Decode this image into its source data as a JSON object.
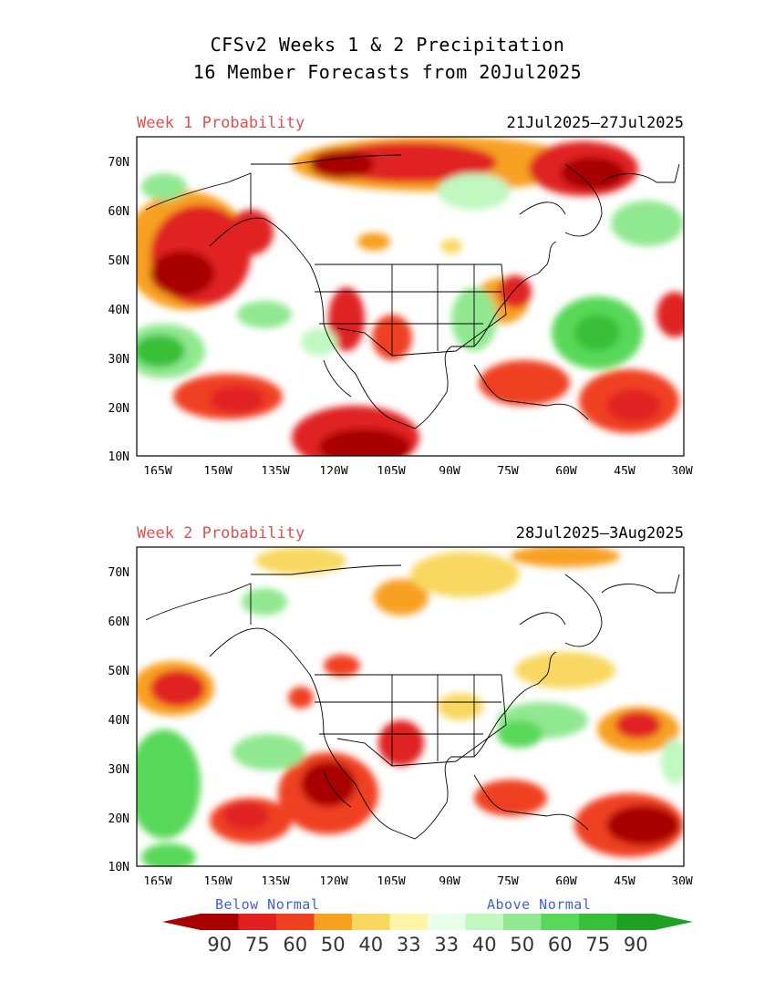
{
  "title": {
    "line1": "CFSv2 Weeks 1 & 2 Precipitation",
    "line2": "16 Member Forecasts from 20Jul2025"
  },
  "panels": [
    {
      "label": "Week 1 Probability",
      "date_range": "21Jul2025—27Jul2025"
    },
    {
      "label": "Week 2 Probability",
      "date_range": "28Jul2025—3Aug2025"
    }
  ],
  "axes": {
    "lat_labels": [
      "70N",
      "60N",
      "50N",
      "40N",
      "30N",
      "20N",
      "10N"
    ],
    "lon_labels": [
      "165W",
      "150W",
      "135W",
      "120W",
      "105W",
      "90W",
      "75W",
      "60W",
      "45W",
      "30W"
    ]
  },
  "legend": {
    "below_label": "Below Normal",
    "above_label": "Above Normal",
    "below_values": [
      "90",
      "75",
      "60",
      "50",
      "40",
      "33"
    ],
    "above_values": [
      "33",
      "40",
      "50",
      "60",
      "75",
      "90"
    ],
    "below_colors": [
      "#a80000",
      "#e02020",
      "#f04020",
      "#f8a020",
      "#f8d860",
      "#fff4a8"
    ],
    "above_colors": [
      "#e8ffe8",
      "#c0f8c0",
      "#90e890",
      "#58d858",
      "#38c038",
      "#20a020"
    ]
  }
}
